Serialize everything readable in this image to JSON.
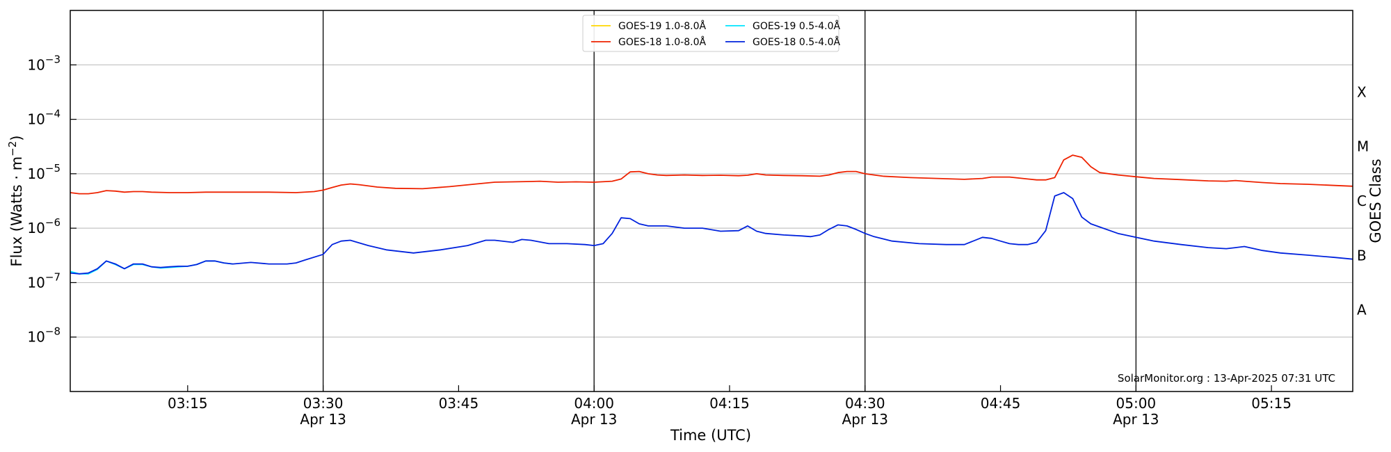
{
  "chart_data": {
    "type": "line",
    "xlabel": "Time (UTC)",
    "ylabel_base": "Flux (Watts · m",
    "ylabel_exp": "−2",
    "ylabel_end": ")",
    "right_axis_label": "GOES Class",
    "y_scale": "log",
    "ylim": [
      1e-09,
      0.01
    ],
    "xlim": [
      "03:02",
      "05:24"
    ],
    "y_ticks": [
      {
        "base": "10",
        "exp": "−3",
        "value": 0.001
      },
      {
        "base": "10",
        "exp": "−4",
        "value": 0.0001
      },
      {
        "base": "10",
        "exp": "−5",
        "value": 1e-05
      },
      {
        "base": "10",
        "exp": "−6",
        "value": 1e-06
      },
      {
        "base": "10",
        "exp": "−7",
        "value": 1e-07
      },
      {
        "base": "10",
        "exp": "−8",
        "value": 1e-08
      }
    ],
    "x_ticks": [
      {
        "time": "03:15",
        "date": ""
      },
      {
        "time": "03:30",
        "date": "Apr 13"
      },
      {
        "time": "03:45",
        "date": ""
      },
      {
        "time": "04:00",
        "date": "Apr 13"
      },
      {
        "time": "04:15",
        "date": ""
      },
      {
        "time": "04:30",
        "date": "Apr 13"
      },
      {
        "time": "04:45",
        "date": ""
      },
      {
        "time": "05:00",
        "date": "Apr 13"
      },
      {
        "time": "05:15",
        "date": ""
      }
    ],
    "vertical_lines": [
      "03:30",
      "04:00",
      "04:30",
      "05:00"
    ],
    "goes_classes": [
      {
        "label": "A",
        "value": 3.162e-08
      },
      {
        "label": "B",
        "value": 3.162e-07
      },
      {
        "label": "C",
        "value": 3.162e-06
      },
      {
        "label": "M",
        "value": 3.162e-05
      },
      {
        "label": "X",
        "value": 0.0003162
      }
    ],
    "grid": true,
    "legend_placement": "top-center",
    "annotation": "SolarMonitor.org : 13-Apr-2025 07:31 UTC",
    "series": [
      {
        "name": "GOES-19 1.0-8.0Å",
        "color": "#ffd700",
        "legend_col": 0,
        "legend_row": 0,
        "x": [],
        "y": []
      },
      {
        "name": "GOES-19 0.5-4.0Å",
        "color": "#00e5ff",
        "legend_col": 1,
        "legend_row": 0,
        "x": [
          "03:02",
          "03:03",
          "03:04",
          "03:05",
          "03:06",
          "03:07",
          "03:08",
          "03:09",
          "03:10",
          "03:11",
          "03:12",
          "03:13",
          "03:14",
          "03:15",
          "03:16",
          "03:17",
          "03:18",
          "03:19",
          "03:20"
        ],
        "y": [
          1.6e-07,
          1.45e-07,
          1.45e-07,
          1.75e-07,
          2.5e-07,
          2.15e-07,
          1.8e-07,
          2.15e-07,
          2.15e-07,
          1.95e-07,
          1.85e-07,
          1.9e-07,
          1.95e-07,
          2e-07,
          2.15e-07,
          2.5e-07,
          2.5e-07,
          2.3e-07,
          2.2e-07
        ]
      },
      {
        "name": "GOES-18 1.0-8.0Å",
        "color": "#ee2200",
        "legend_col": 0,
        "legend_row": 1,
        "x": [
          "03:02",
          "03:03",
          "03:04",
          "03:05",
          "03:06",
          "03:07",
          "03:08",
          "03:09",
          "03:10",
          "03:11",
          "03:13",
          "03:15",
          "03:17",
          "03:20",
          "03:24",
          "03:27",
          "03:29",
          "03:30",
          "03:31",
          "03:32",
          "03:33",
          "03:34",
          "03:36",
          "03:38",
          "03:41",
          "03:44",
          "03:47",
          "03:49",
          "03:51",
          "03:53",
          "03:54",
          "03:56",
          "03:58",
          "04:00",
          "04:02",
          "04:03",
          "04:04",
          "04:05",
          "04:06",
          "04:07",
          "04:08",
          "04:10",
          "04:12",
          "04:14",
          "04:16",
          "04:17",
          "04:18",
          "04:19",
          "04:21",
          "04:23",
          "04:25",
          "04:26",
          "04:27",
          "04:28",
          "04:29",
          "04:30",
          "04:32",
          "04:35",
          "04:38",
          "04:41",
          "04:43",
          "04:44",
          "04:46",
          "04:48",
          "04:49",
          "04:50",
          "04:51",
          "04:52",
          "04:53",
          "04:54",
          "04:55",
          "04:56",
          "04:58",
          "05:00",
          "05:02",
          "05:05",
          "05:08",
          "05:10",
          "05:11",
          "05:12",
          "05:14",
          "05:16",
          "05:19",
          "05:22",
          "05:24"
        ],
        "y": [
          4.5e-06,
          4.3e-06,
          4.3e-06,
          4.5e-06,
          4.9e-06,
          4.8e-06,
          4.6e-06,
          4.7e-06,
          4.7e-06,
          4.6e-06,
          4.5e-06,
          4.5e-06,
          4.6e-06,
          4.6e-06,
          4.6e-06,
          4.5e-06,
          4.7e-06,
          5e-06,
          5.6e-06,
          6.2e-06,
          6.5e-06,
          6.3e-06,
          5.7e-06,
          5.4e-06,
          5.3e-06,
          5.8e-06,
          6.5e-06,
          7e-06,
          7.1e-06,
          7.2e-06,
          7.3e-06,
          7e-06,
          7.1e-06,
          7e-06,
          7.3e-06,
          8e-06,
          1.08e-05,
          1.1e-05,
          1e-05,
          9.5e-06,
          9.3e-06,
          9.5e-06,
          9.3e-06,
          9.4e-06,
          9.2e-06,
          9.4e-06,
          1e-05,
          9.5e-06,
          9.3e-06,
          9.2e-06,
          9e-06,
          9.5e-06,
          1.05e-05,
          1.1e-05,
          1.1e-05,
          1e-05,
          9e-06,
          8.5e-06,
          8.2e-06,
          7.9e-06,
          8.2e-06,
          8.7e-06,
          8.7e-06,
          8e-06,
          7.7e-06,
          7.7e-06,
          8.5e-06,
          1.8e-05,
          2.2e-05,
          2e-05,
          1.35e-05,
          1.05e-05,
          9.5e-06,
          8.8e-06,
          8.2e-06,
          7.8e-06,
          7.4e-06,
          7.3e-06,
          7.5e-06,
          7.3e-06,
          6.9e-06,
          6.6e-06,
          6.4e-06,
          6.1e-06,
          5.9e-06
        ]
      },
      {
        "name": "GOES-18 0.5-4.0Å",
        "color": "#0022dd",
        "legend_col": 1,
        "legend_row": 1,
        "x": [
          "03:02",
          "03:03",
          "03:04",
          "03:05",
          "03:06",
          "03:07",
          "03:08",
          "03:09",
          "03:10",
          "03:11",
          "03:12",
          "03:13",
          "03:14",
          "03:15",
          "03:16",
          "03:17",
          "03:18",
          "03:19",
          "03:20",
          "03:22",
          "03:24",
          "03:26",
          "03:27",
          "03:28",
          "03:30",
          "03:31",
          "03:32",
          "03:33",
          "03:35",
          "03:37",
          "03:40",
          "03:43",
          "03:46",
          "03:48",
          "03:49",
          "03:51",
          "03:52",
          "03:53",
          "03:55",
          "03:57",
          "03:59",
          "04:00",
          "04:01",
          "04:02",
          "04:03",
          "04:04",
          "04:05",
          "04:06",
          "04:08",
          "04:10",
          "04:12",
          "04:14",
          "04:16",
          "04:17",
          "04:18",
          "04:19",
          "04:21",
          "04:23",
          "04:24",
          "04:25",
          "04:26",
          "04:27",
          "04:28",
          "04:29",
          "04:30",
          "04:31",
          "04:33",
          "04:36",
          "04:39",
          "04:41",
          "04:43",
          "04:44",
          "04:45",
          "04:46",
          "04:47",
          "04:48",
          "04:49",
          "04:50",
          "04:51",
          "04:52",
          "04:53",
          "04:54",
          "04:55",
          "04:56",
          "04:58",
          "05:00",
          "05:02",
          "05:05",
          "05:08",
          "05:10",
          "05:11",
          "05:12",
          "05:14",
          "05:16",
          "05:19",
          "05:22",
          "05:24"
        ],
        "y": [
          1.5e-07,
          1.45e-07,
          1.5e-07,
          1.8e-07,
          2.5e-07,
          2.2e-07,
          1.8e-07,
          2.2e-07,
          2.2e-07,
          1.95e-07,
          1.9e-07,
          1.95e-07,
          2e-07,
          2e-07,
          2.15e-07,
          2.5e-07,
          2.5e-07,
          2.3e-07,
          2.2e-07,
          2.35e-07,
          2.2e-07,
          2.2e-07,
          2.3e-07,
          2.6e-07,
          3.3e-07,
          5e-07,
          5.8e-07,
          6e-07,
          4.8e-07,
          4e-07,
          3.5e-07,
          4e-07,
          4.8e-07,
          6e-07,
          6e-07,
          5.5e-07,
          6.2e-07,
          6e-07,
          5.2e-07,
          5.2e-07,
          5e-07,
          4.8e-07,
          5.2e-07,
          8e-07,
          1.55e-06,
          1.5e-06,
          1.2e-06,
          1.1e-06,
          1.1e-06,
          1e-06,
          1e-06,
          8.8e-07,
          9e-07,
          1.1e-06,
          8.8e-07,
          8e-07,
          7.5e-07,
          7.2e-07,
          7e-07,
          7.5e-07,
          9.5e-07,
          1.15e-06,
          1.1e-06,
          9.5e-07,
          8e-07,
          7e-07,
          5.8e-07,
          5.2e-07,
          5e-07,
          5e-07,
          6.8e-07,
          6.5e-07,
          5.8e-07,
          5.2e-07,
          5e-07,
          5e-07,
          5.5e-07,
          9e-07,
          3.9e-06,
          4.5e-06,
          3.5e-06,
          1.6e-06,
          1.2e-06,
          1.05e-06,
          8e-07,
          6.8e-07,
          5.8e-07,
          5e-07,
          4.4e-07,
          4.2e-07,
          4.4e-07,
          4.6e-07,
          3.9e-07,
          3.5e-07,
          3.2e-07,
          2.9e-07,
          2.7e-07
        ]
      }
    ]
  }
}
